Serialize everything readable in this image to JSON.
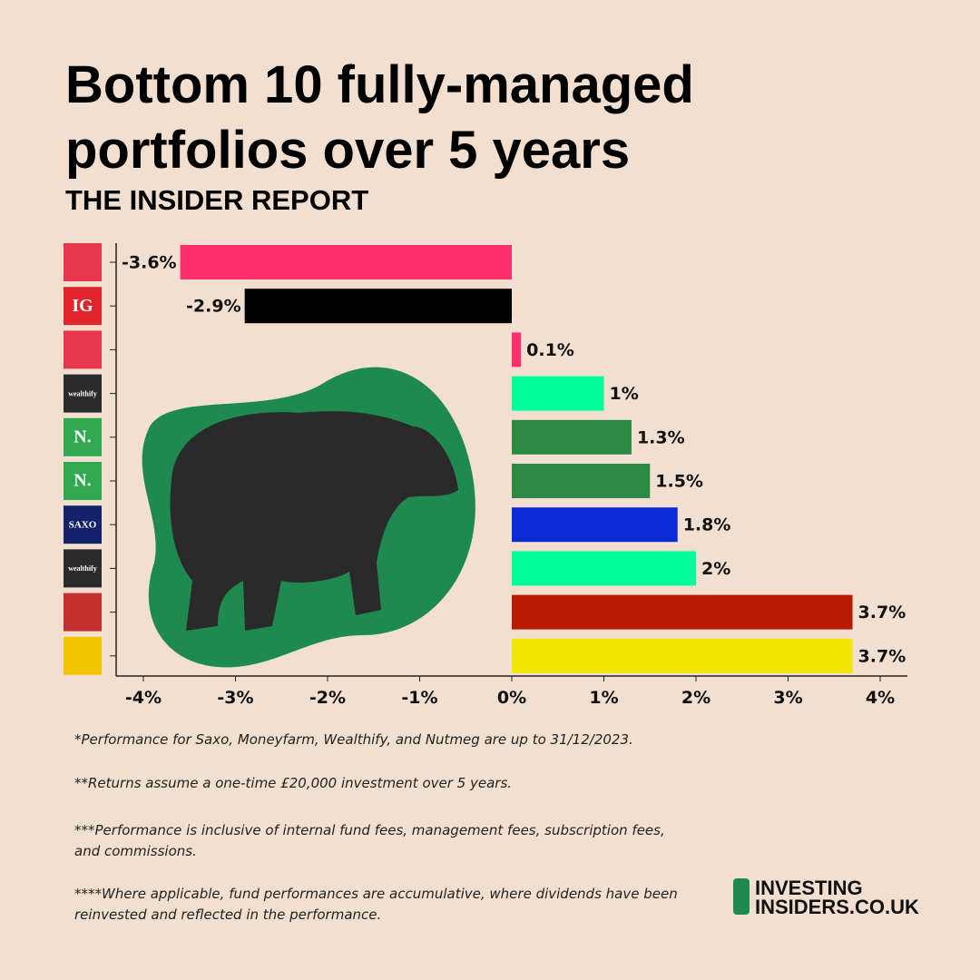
{
  "chart_data": {
    "type": "barh",
    "title": [
      "Bottom 10 fully-managed",
      "portfolios over 5 years"
    ],
    "subtitle": "THE INSIDER REPORT",
    "categories": [
      null,
      "IG",
      null,
      "wealthify",
      "N.",
      "N.",
      "SAXO",
      "wealthify",
      null,
      null
    ],
    "logo_colors": [
      "#e8364d",
      "#e0262b",
      "#e8364d",
      "#2b2b2b",
      "#2fa84f",
      "#2fa84f",
      "#13226b",
      "#2b2b2b",
      "#c5302e",
      "#f5c400"
    ],
    "values": [
      -3.6,
      -2.9,
      0.1,
      1,
      1.3,
      1.5,
      1.8,
      2,
      3.7,
      3.7
    ],
    "value_labels": [
      "-3.6%",
      "-2.9%",
      "0.1%",
      "1%",
      "1.3%",
      "1.5%",
      "1.8%",
      "2%",
      "3.7%",
      "3.7%"
    ],
    "colors": [
      "#ff2e6e",
      "#000000",
      "#ff2e6e",
      "#00ff99",
      "#2a8a45",
      "#2a8a45",
      "#0a2ad6",
      "#00ff99",
      "#b81c00",
      "#f2e600"
    ],
    "xlim": [
      -4,
      4
    ],
    "xticks": [
      {
        "value": -4,
        "label": "-4%"
      },
      {
        "value": -3,
        "label": "-3%"
      },
      {
        "value": -2,
        "label": "-2%"
      },
      {
        "value": -1,
        "label": "-1%"
      },
      {
        "value": 0,
        "label": "0%"
      },
      {
        "value": 1,
        "label": "1%"
      },
      {
        "value": 2,
        "label": "2%"
      },
      {
        "value": 3,
        "label": "3%"
      },
      {
        "value": 4,
        "label": "4%"
      }
    ],
    "footnotes": [
      [
        "*Performance for Saxo, Moneyfarm, Wealthify, and Nutmeg are up to 31/12/2023."
      ],
      [
        "**Returns assume a one-time £20,000 investment over 5 years."
      ],
      [
        "***Performance is inclusive of internal fund fees, management fees, subscription fees,",
        "and commissions."
      ],
      [
        "****Where applicable, fund performances are accumulative, where dividends have been",
        "reinvested and reflected in the performance."
      ]
    ],
    "brand": [
      "INVESTING",
      "INSIDERS.CO.UK"
    ]
  }
}
